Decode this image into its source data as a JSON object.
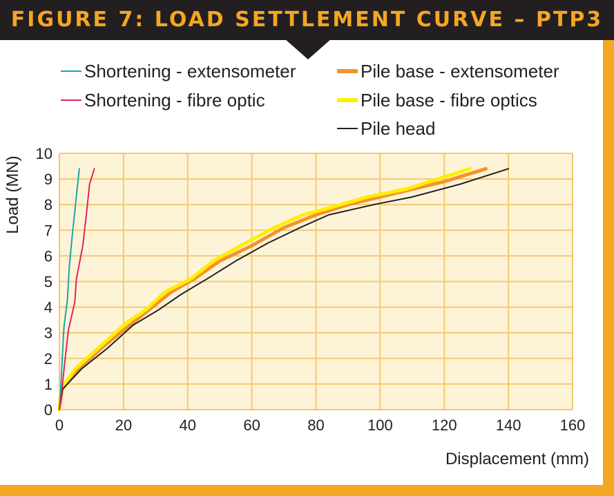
{
  "title": "FIGURE 7: LOAD SETTLEMENT CURVE – PTP3",
  "colors": {
    "frame": "#f5a623",
    "plot_bg": "#fdf4d8",
    "grid": "#f5c86e",
    "title_bg": "#231f20",
    "title_fg": "#f5a623"
  },
  "chart_data": {
    "type": "line",
    "title": "FIGURE 7: LOAD SETTLEMENT CURVE – PTP3",
    "xlabel": "Displacement (mm)",
    "ylabel": "Load (MN)",
    "xlim": [
      0,
      160
    ],
    "ylim": [
      0,
      10
    ],
    "x_ticks": [
      "0",
      "20",
      "40",
      "60",
      "80",
      "100",
      "120",
      "140",
      "160"
    ],
    "y_ticks": [
      "0",
      "1",
      "2",
      "3",
      "4",
      "5",
      "6",
      "7",
      "8",
      "9",
      "10"
    ],
    "grid": true,
    "legend_position": "top",
    "series": [
      {
        "name": "Shortening - extensometer",
        "color": "#1aa6a6",
        "line_weight": "thin",
        "points": [
          [
            0,
            0
          ],
          [
            0.4,
            0.8
          ],
          [
            0.9,
            2
          ],
          [
            1.4,
            3.2
          ],
          [
            2.5,
            4.3
          ],
          [
            3.1,
            5.6
          ],
          [
            4.1,
            6.9
          ],
          [
            5.2,
            8.2
          ],
          [
            6.2,
            9.4
          ]
        ]
      },
      {
        "name": "Shortening - fibre optic",
        "color": "#e0235f",
        "line_weight": "thin",
        "points": [
          [
            0,
            0
          ],
          [
            0.8,
            0.8
          ],
          [
            1.8,
            2
          ],
          [
            2.8,
            3.1
          ],
          [
            4.8,
            4.2
          ],
          [
            5.3,
            5.1
          ],
          [
            7.3,
            6.4
          ],
          [
            8.4,
            7.6
          ],
          [
            9.4,
            8.8
          ],
          [
            10.9,
            9.4
          ]
        ]
      },
      {
        "name": "Pile base - extensometer",
        "color": "#f4932b",
        "line_weight": "thick",
        "points": [
          [
            0,
            0
          ],
          [
            0.8,
            0.8
          ],
          [
            6,
            1.6
          ],
          [
            14,
            2.5
          ],
          [
            22,
            3.3
          ],
          [
            28,
            3.9
          ],
          [
            35,
            4.6
          ],
          [
            42,
            5.1
          ],
          [
            50,
            5.8
          ],
          [
            60,
            6.4
          ],
          [
            70,
            7.1
          ],
          [
            80,
            7.6
          ],
          [
            90,
            8.0
          ],
          [
            100,
            8.3
          ],
          [
            110,
            8.6
          ],
          [
            120,
            8.9
          ],
          [
            133,
            9.4
          ]
        ]
      },
      {
        "name": "Pile base - fibre optics",
        "color": "#ffee00",
        "line_weight": "thick",
        "points": [
          [
            0,
            0
          ],
          [
            0.5,
            0.8
          ],
          [
            5,
            1.6
          ],
          [
            13,
            2.5
          ],
          [
            21,
            3.4
          ],
          [
            27,
            3.9
          ],
          [
            33,
            4.6
          ],
          [
            41,
            5.1
          ],
          [
            48,
            5.8
          ],
          [
            58,
            6.5
          ],
          [
            67,
            7.1
          ],
          [
            76,
            7.6
          ],
          [
            85,
            7.9
          ],
          [
            96,
            8.3
          ],
          [
            108,
            8.6
          ],
          [
            118,
            9.0
          ],
          [
            128,
            9.4
          ]
        ]
      },
      {
        "name": "Pile head",
        "color": "#231f20",
        "line_weight": "thin",
        "points": [
          [
            0,
            0
          ],
          [
            1,
            0.8
          ],
          [
            7,
            1.6
          ],
          [
            15,
            2.4
          ],
          [
            23,
            3.3
          ],
          [
            31,
            3.9
          ],
          [
            38,
            4.5
          ],
          [
            46,
            5.1
          ],
          [
            55,
            5.8
          ],
          [
            65,
            6.5
          ],
          [
            75,
            7.1
          ],
          [
            84,
            7.6
          ],
          [
            98,
            8.0
          ],
          [
            110,
            8.3
          ],
          [
            125,
            8.8
          ],
          [
            140,
            9.4
          ]
        ]
      }
    ]
  }
}
